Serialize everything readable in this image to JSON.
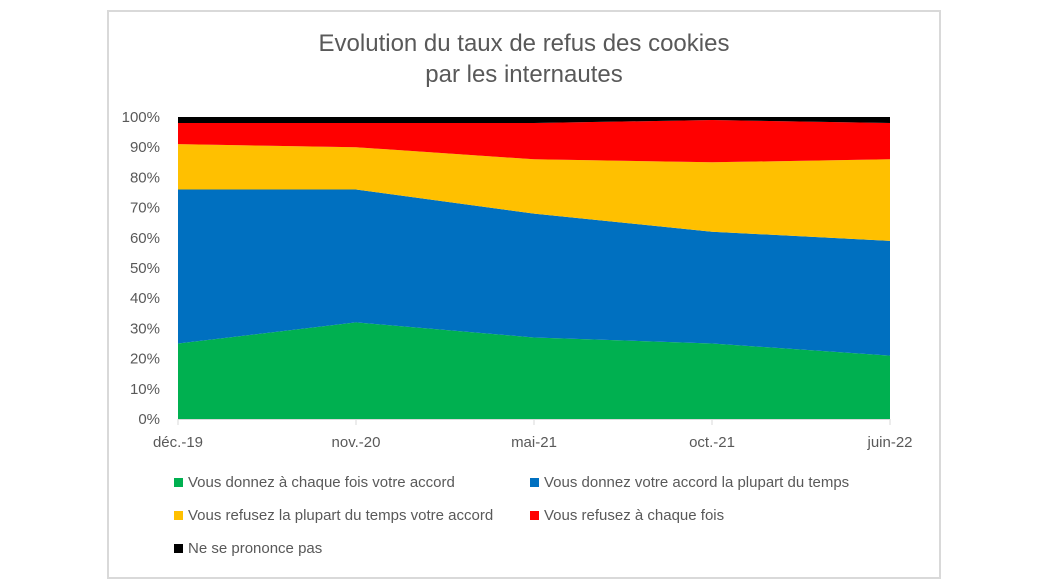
{
  "chart_data": {
    "type": "area",
    "stacked": true,
    "percent": true,
    "title": "Evolution du taux de refus des cookies par les internautes",
    "title_lines": [
      "Evolution du taux de refus des cookies",
      "par les internautes"
    ],
    "xlabel": "",
    "ylabel": "",
    "ylim": [
      0,
      100
    ],
    "y_ticks": [
      "0%",
      "10%",
      "20%",
      "30%",
      "40%",
      "50%",
      "60%",
      "70%",
      "80%",
      "90%",
      "100%"
    ],
    "categories": [
      "déc.-19",
      "nov.-20",
      "mai-21",
      "oct.-21",
      "juin-22"
    ],
    "series": [
      {
        "name": "Vous donnez à chaque fois votre accord",
        "color": "#00b050",
        "values": [
          25,
          32,
          27,
          25,
          21
        ]
      },
      {
        "name": "Vous donnez votre accord la plupart du temps",
        "color": "#0070c0",
        "values": [
          51,
          44,
          41,
          37,
          38
        ]
      },
      {
        "name": "Vous refusez la plupart du temps votre accord",
        "color": "#ffc000",
        "values": [
          15,
          14,
          18,
          23,
          27
        ]
      },
      {
        "name": "Vous refusez à chaque fois",
        "color": "#ff0000",
        "values": [
          7,
          8,
          12,
          14,
          12
        ]
      },
      {
        "name": "Ne se prononce pas",
        "color": "#000000",
        "values": [
          2,
          2,
          2,
          1,
          2
        ]
      }
    ],
    "grid": false,
    "legend_position": "bottom"
  }
}
